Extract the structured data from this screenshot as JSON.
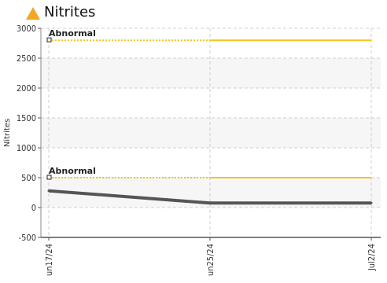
{
  "header": {
    "title": "Nitrites",
    "icon": "warning-icon",
    "icon_color": "#f5a623"
  },
  "chart_data": {
    "type": "line",
    "title": "Nitrites",
    "xlabel": "",
    "ylabel": "Nitrites",
    "x_ticks": [
      "un17/24",
      "un25/24",
      "Jul2/24"
    ],
    "y_ticks": [
      "3000",
      "2500",
      "2000",
      "1500",
      "1000",
      "500",
      "0",
      "-500"
    ],
    "ylim": [
      -500,
      3000
    ],
    "grid": true,
    "series": [
      {
        "color": "#555555",
        "points": [
          {
            "x": "un17/24",
            "y": 280
          },
          {
            "x": "un25/24",
            "y": 75
          },
          {
            "x": "Jul2/24",
            "y": 75
          }
        ]
      }
    ],
    "thresholds": [
      {
        "label": "Abnormal",
        "value": 2800,
        "color": "#f5c518"
      },
      {
        "label": "Abnormal",
        "value": 500,
        "color": "#f5c518"
      }
    ],
    "band_colors": [
      "#ffffff",
      "#f6f6f6"
    ]
  }
}
